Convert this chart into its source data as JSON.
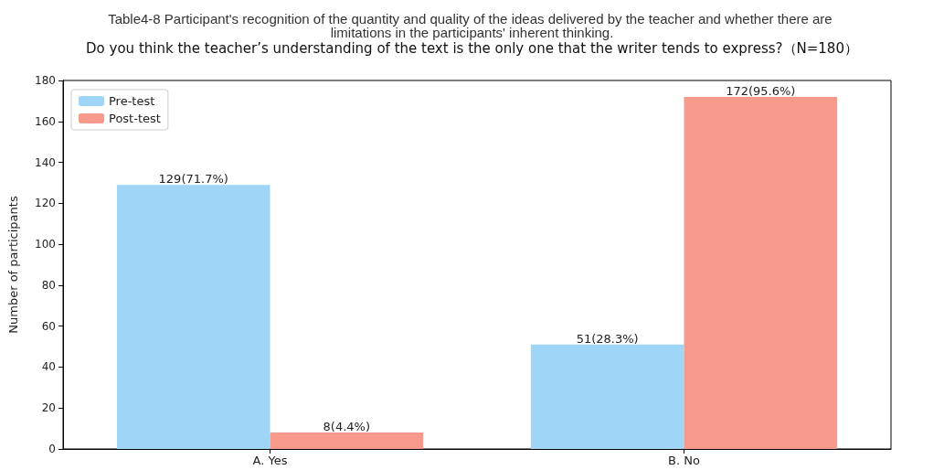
{
  "chart_data": {
    "type": "bar",
    "title": "Table4-8 Participant's recognition of the quantity and quality of the ideas delivered by the teacher and whether there are limitations in the participants' inherent thinking.",
    "subtitle": "Do you think the teacher’s understanding of the text is the only one that the writer tends to express?（N=180）",
    "ylabel": "Number of participants",
    "categories": [
      "A. Yes",
      "B. No"
    ],
    "series": [
      {
        "name": "Pre-test",
        "color": "#9fd5f7",
        "values": [
          129,
          51
        ],
        "value_labels": [
          "129(71.7%)",
          "51(28.3%)"
        ]
      },
      {
        "name": "Post-test",
        "color": "#f79a8c",
        "values": [
          8,
          172
        ],
        "value_labels": [
          "8(4.4%)",
          "172(95.6%)"
        ]
      }
    ],
    "ylim": [
      0,
      180
    ],
    "yticks": [
      0,
      20,
      40,
      60,
      80,
      100,
      120,
      140,
      160,
      180
    ],
    "grid": false,
    "legend": "top left"
  }
}
